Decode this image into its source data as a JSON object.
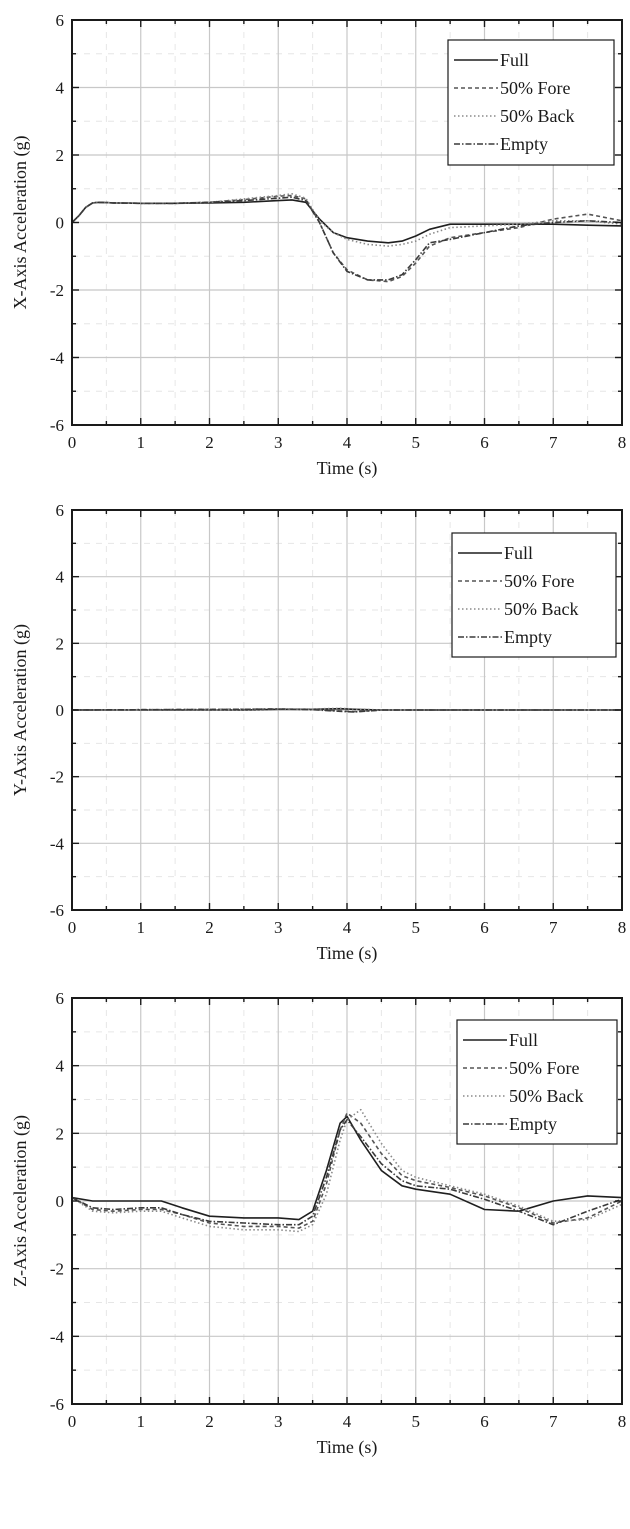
{
  "chart_data": [
    {
      "type": "line",
      "xlabel": "Time (s)",
      "ylabel": "X-Axis Acceleration (g)",
      "xlim": [
        0,
        8
      ],
      "ylim": [
        -6,
        6
      ],
      "xticks": [
        "0",
        "1",
        "2",
        "3",
        "4",
        "5",
        "6",
        "7",
        "8"
      ],
      "yticks": [
        "6",
        "4",
        "2",
        "0",
        "-2",
        "-4",
        "-6"
      ],
      "grid": true,
      "legend_position": "top-right",
      "series": [
        {
          "name": "Full",
          "x": [
            0,
            0.1,
            0.2,
            0.3,
            0.4,
            0.6,
            1,
            1.5,
            2,
            2.5,
            3,
            3.2,
            3.4,
            3.6,
            3.8,
            4,
            4.3,
            4.6,
            4.8,
            5,
            5.2,
            5.5,
            6,
            6.5,
            7,
            7.5,
            8
          ],
          "y": [
            0,
            0.2,
            0.45,
            0.58,
            0.6,
            0.58,
            0.57,
            0.57,
            0.58,
            0.6,
            0.65,
            0.67,
            0.6,
            0.1,
            -0.3,
            -0.45,
            -0.55,
            -0.6,
            -0.55,
            -0.4,
            -0.2,
            -0.05,
            -0.05,
            -0.05,
            -0.05,
            -0.08,
            -0.1
          ]
        },
        {
          "name": "50% Fore",
          "x": [
            0,
            0.1,
            0.2,
            0.3,
            0.4,
            0.6,
            1,
            1.5,
            2,
            2.5,
            3,
            3.2,
            3.4,
            3.6,
            3.8,
            4,
            4.3,
            4.6,
            4.8,
            5,
            5.2,
            5.5,
            6,
            6.5,
            7,
            7.5,
            8
          ],
          "y": [
            0,
            0.2,
            0.45,
            0.58,
            0.6,
            0.58,
            0.57,
            0.57,
            0.6,
            0.68,
            0.78,
            0.8,
            0.7,
            0,
            -0.9,
            -1.4,
            -1.7,
            -1.75,
            -1.6,
            -1.2,
            -0.7,
            -0.45,
            -0.3,
            -0.15,
            0.1,
            0.25,
            0.05
          ]
        },
        {
          "name": "50% Back",
          "x": [
            0,
            0.1,
            0.2,
            0.3,
            0.4,
            0.6,
            1,
            1.5,
            2,
            2.5,
            3,
            3.2,
            3.4,
            3.6,
            3.8,
            4,
            4.3,
            4.6,
            4.8,
            5,
            5.2,
            5.5,
            6,
            6.5,
            7,
            7.5,
            8
          ],
          "y": [
            0,
            0.2,
            0.45,
            0.58,
            0.6,
            0.58,
            0.57,
            0.57,
            0.6,
            0.7,
            0.8,
            0.85,
            0.72,
            0.05,
            -0.3,
            -0.5,
            -0.65,
            -0.7,
            -0.65,
            -0.55,
            -0.35,
            -0.15,
            -0.1,
            -0.05,
            0.05,
            0.05,
            -0.05
          ]
        },
        {
          "name": "Empty",
          "x": [
            0,
            0.1,
            0.2,
            0.3,
            0.4,
            0.6,
            1,
            1.5,
            2,
            2.5,
            3,
            3.2,
            3.4,
            3.6,
            3.8,
            4,
            4.3,
            4.6,
            4.8,
            5,
            5.2,
            5.5,
            6,
            6.5,
            7,
            7.5,
            8
          ],
          "y": [
            0,
            0.2,
            0.45,
            0.58,
            0.6,
            0.58,
            0.57,
            0.57,
            0.6,
            0.65,
            0.72,
            0.75,
            0.65,
            0,
            -0.9,
            -1.45,
            -1.7,
            -1.7,
            -1.55,
            -1.1,
            -0.6,
            -0.5,
            -0.3,
            -0.1,
            0,
            0.05,
            0
          ]
        }
      ]
    },
    {
      "type": "line",
      "xlabel": "Time (s)",
      "ylabel": "Y-Axis Acceleration (g)",
      "xlim": [
        0,
        8
      ],
      "ylim": [
        -6,
        6
      ],
      "xticks": [
        "0",
        "1",
        "2",
        "3",
        "4",
        "5",
        "6",
        "7",
        "8"
      ],
      "yticks": [
        "6",
        "4",
        "2",
        "0",
        "-2",
        "-4",
        "-6"
      ],
      "grid": true,
      "legend_position": "top-right",
      "series": [
        {
          "name": "Full",
          "x": [
            0,
            2.5,
            3,
            3.5,
            3.9,
            4.1,
            4.5,
            8
          ],
          "y": [
            0,
            0,
            0.02,
            0.02,
            0.04,
            0.02,
            0,
            0
          ]
        },
        {
          "name": "50% Fore",
          "x": [
            0,
            2.5,
            3,
            3.5,
            3.9,
            4.1,
            4.5,
            8
          ],
          "y": [
            0,
            0.02,
            0.03,
            0.02,
            -0.03,
            -0.05,
            0,
            0
          ]
        },
        {
          "name": "50% Back",
          "x": [
            0,
            2.5,
            3,
            3.5,
            3.9,
            4.1,
            4.5,
            8
          ],
          "y": [
            0,
            0.01,
            0.02,
            0.03,
            0.05,
            0.03,
            0,
            0
          ]
        },
        {
          "name": "Empty",
          "x": [
            0,
            2.5,
            3,
            3.5,
            3.9,
            4.1,
            4.5,
            8
          ],
          "y": [
            0,
            0.02,
            0.03,
            0.01,
            -0.04,
            -0.06,
            0,
            0
          ]
        }
      ]
    },
    {
      "type": "line",
      "xlabel": "Time (s)",
      "ylabel": "Z-Axis Acceleration (g)",
      "xlim": [
        0,
        8
      ],
      "ylim": [
        -6,
        6
      ],
      "xticks": [
        "0",
        "1",
        "2",
        "3",
        "4",
        "5",
        "6",
        "7",
        "8"
      ],
      "yticks": [
        "6",
        "4",
        "2",
        "0",
        "-2",
        "-4",
        "-6"
      ],
      "grid": true,
      "legend_position": "top-right",
      "series": [
        {
          "name": "Full",
          "x": [
            0,
            0.3,
            0.6,
            1,
            1.3,
            1.6,
            2,
            2.5,
            3,
            3.3,
            3.5,
            3.7,
            3.9,
            4,
            4.2,
            4.5,
            4.8,
            5,
            5.5,
            6,
            6.5,
            7,
            7.5,
            8
          ],
          "y": [
            0.1,
            0,
            0,
            0,
            0,
            -0.2,
            -0.45,
            -0.5,
            -0.5,
            -0.55,
            -0.3,
            0.9,
            2.3,
            2.5,
            1.8,
            0.9,
            0.45,
            0.35,
            0.2,
            -0.25,
            -0.3,
            0,
            0.15,
            0.1
          ]
        },
        {
          "name": "50% Fore",
          "x": [
            0,
            0.3,
            0.6,
            1,
            1.3,
            1.6,
            2,
            2.5,
            3,
            3.3,
            3.5,
            3.7,
            3.9,
            4,
            4.2,
            4.5,
            4.8,
            5,
            5.5,
            6,
            6.5,
            7,
            7.5,
            8
          ],
          "y": [
            0.1,
            -0.25,
            -0.3,
            -0.25,
            -0.25,
            -0.4,
            -0.65,
            -0.75,
            -0.75,
            -0.8,
            -0.6,
            0.5,
            2.1,
            2.6,
            2.3,
            1.4,
            0.75,
            0.6,
            0.4,
            0.15,
            -0.2,
            -0.65,
            -0.5,
            0
          ]
        },
        {
          "name": "50% Back",
          "x": [
            0,
            0.3,
            0.6,
            1,
            1.3,
            1.6,
            2,
            2.5,
            3,
            3.3,
            3.5,
            3.7,
            3.9,
            4,
            4.2,
            4.5,
            4.8,
            5,
            5.5,
            6,
            6.5,
            7,
            7.5,
            8
          ],
          "y": [
            0.1,
            -0.3,
            -0.35,
            -0.3,
            -0.3,
            -0.5,
            -0.75,
            -0.85,
            -0.85,
            -0.9,
            -0.7,
            0.2,
            1.8,
            2.4,
            2.7,
            1.7,
            0.9,
            0.7,
            0.45,
            0.2,
            -0.15,
            -0.6,
            -0.55,
            -0.1
          ]
        },
        {
          "name": "Empty",
          "x": [
            0,
            0.3,
            0.6,
            1,
            1.3,
            1.6,
            2,
            2.5,
            3,
            3.3,
            3.5,
            3.7,
            3.9,
            4,
            4.2,
            4.5,
            4.8,
            5,
            5.5,
            6,
            6.5,
            7,
            7.5,
            8
          ],
          "y": [
            0.1,
            -0.2,
            -0.25,
            -0.2,
            -0.2,
            -0.4,
            -0.6,
            -0.65,
            -0.7,
            -0.7,
            -0.45,
            0.7,
            2.1,
            2.4,
            1.9,
            1.1,
            0.6,
            0.45,
            0.35,
            0.05,
            -0.3,
            -0.7,
            -0.3,
            0.05
          ]
        }
      ]
    }
  ],
  "styles": {
    "line_color": "#2b2b2b",
    "grid_color": "#c8c8c8",
    "minor_grid_color": "#e6e6e6",
    "series_dash": {
      "Full": "none",
      "50% Fore": "4,3",
      "50% Back": "1.5,2.5",
      "Empty": "6,2,1.5,2"
    },
    "series_color": {
      "Full": "#1f1f1f",
      "50% Fore": "#555555",
      "50% Back": "#8a8a8a",
      "Empty": "#3a3a3a"
    }
  }
}
